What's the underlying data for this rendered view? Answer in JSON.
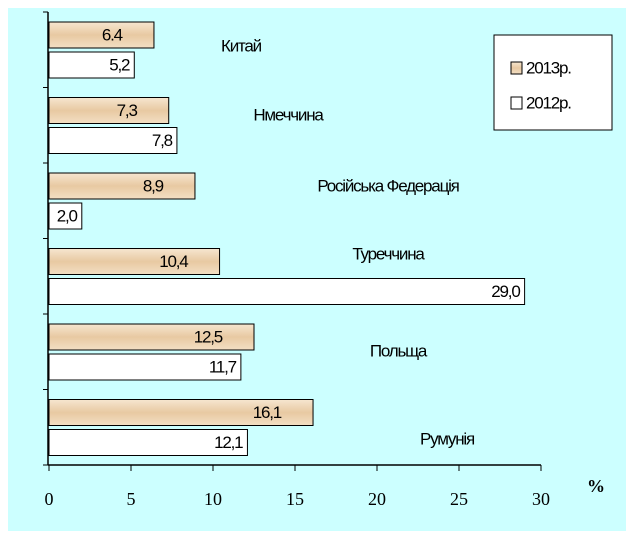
{
  "chart_data": {
    "type": "hbar",
    "categories": [
      "Китай",
      "Нмеччина",
      "Російська Федерація",
      "Туреччина",
      "Польща",
      "Румунія"
    ],
    "series": [
      {
        "name": "2013р.",
        "color": "#ecd3b2",
        "values": [
          6.4,
          7.3,
          8.9,
          10.4,
          12.5,
          16.1
        ],
        "value_labels": [
          "6.4",
          "7,3",
          "8,9",
          "10,4",
          "12,5",
          "16,1"
        ]
      },
      {
        "name": "2012р.",
        "color": "#ffffff",
        "values": [
          5.2,
          7.8,
          2.0,
          29.0,
          11.7,
          12.1
        ],
        "value_labels": [
          "5,2",
          "7,8",
          "2,0",
          "29,0",
          "11,7",
          "12,1"
        ]
      }
    ],
    "xlabel": "%",
    "xlim": [
      0,
      30
    ],
    "xticks": [
      0,
      5,
      10,
      15,
      20,
      25,
      30
    ],
    "legend": "top-right"
  }
}
